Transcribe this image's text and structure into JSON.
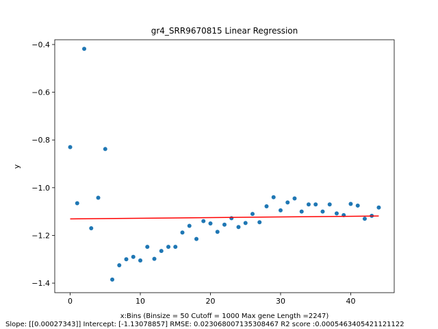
{
  "chart_data": {
    "type": "scatter",
    "title": "gr4_SRR9670815 Linear Regression",
    "xlabel": "x:Bins  (Binsize = 50 Cutoff = 1000 Max gene Length =2247)",
    "footer": "Slope: [[0.00027343]] Intercept: [-1.13078857] RMSE: 0.023068007135308467 R2 score :0.0005463405421121122",
    "ylabel": "y",
    "xlim": [
      -2.2,
      46.2
    ],
    "ylim": [
      -1.44,
      -0.38
    ],
    "xticks": [
      0,
      10,
      20,
      30,
      40
    ],
    "yticks": [
      -1.4,
      -1.2,
      -1.0,
      -0.8,
      -0.6,
      -0.4
    ],
    "ytick_labels": [
      "−1.4",
      "−1.2",
      "−1.0",
      "−0.8",
      "−0.6",
      "−0.4"
    ],
    "grid": false,
    "point_color": "#1f77b4",
    "line_color": "#ff0000",
    "series": [
      {
        "x": [
          0,
          1,
          2,
          3,
          4,
          5,
          6,
          7,
          8,
          9,
          10,
          11,
          12,
          13,
          14,
          15,
          16,
          17,
          18,
          19,
          20,
          21,
          22,
          23,
          24,
          25,
          26,
          27,
          28,
          29,
          30,
          31,
          32,
          33,
          34,
          35,
          36,
          37,
          38,
          39,
          40,
          41,
          42,
          43,
          44
        ],
        "y": [
          -0.83,
          -1.065,
          -0.418,
          -1.17,
          -1.042,
          -0.838,
          -1.385,
          -1.325,
          -1.3,
          -1.29,
          -1.305,
          -1.248,
          -1.298,
          -1.265,
          -1.248,
          -1.248,
          -1.188,
          -1.16,
          -1.215,
          -1.14,
          -1.15,
          -1.185,
          -1.155,
          -1.128,
          -1.165,
          -1.148,
          -1.11,
          -1.145,
          -1.078,
          -1.04,
          -1.095,
          -1.062,
          -1.045,
          -1.1,
          -1.07,
          -1.07,
          -1.1,
          -1.07,
          -1.108,
          -1.115,
          -1.068,
          -1.075,
          -1.13,
          -1.118,
          -1.083
        ]
      }
    ],
    "regression": {
      "slope": 0.00027343,
      "intercept": -1.13078857,
      "x_range": [
        0,
        44
      ]
    }
  }
}
